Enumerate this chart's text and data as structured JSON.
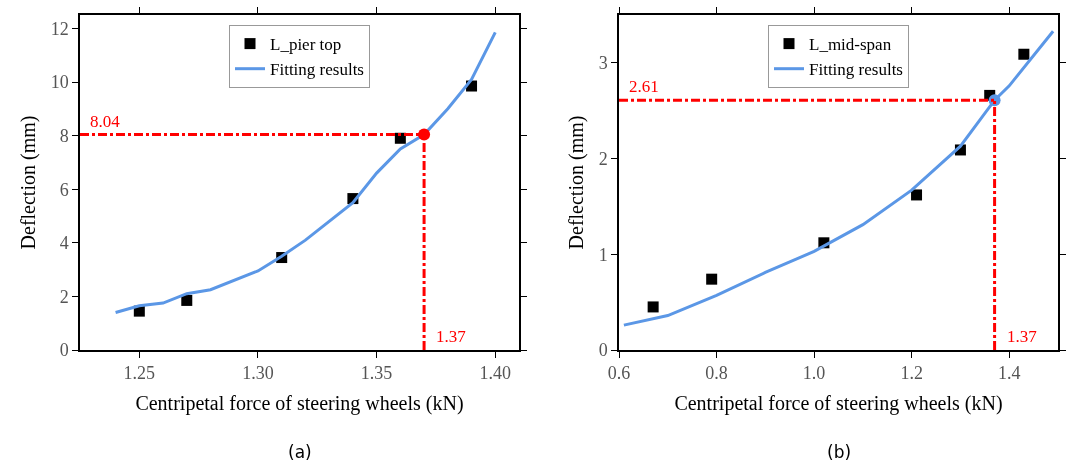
{
  "chart_data": [
    {
      "type": "scatter",
      "xlabel": "Centripetal force of steering wheels (kN)",
      "ylabel": "Deflection (mm)",
      "annotations": [
        "(a)"
      ],
      "xlim": [
        1.225,
        1.41
      ],
      "xticks": [
        {
          "value": 1.25,
          "label": "1.25"
        },
        {
          "value": 1.3,
          "label": "1.30"
        },
        {
          "value": 1.35,
          "label": "1.35"
        },
        {
          "value": 1.4,
          "label": "1.40"
        }
      ],
      "ylim": [
        0,
        12.5
      ],
      "yticks": [
        0,
        2,
        4,
        6,
        8,
        10,
        12
      ],
      "grid": false,
      "legend": "top",
      "series": [
        {
          "name": "L_pier top",
          "marker": "square",
          "color": "#000000",
          "x": [
            1.25,
            1.27,
            1.31,
            1.34,
            1.36,
            1.39
          ],
          "values": [
            1.45,
            1.85,
            3.45,
            5.65,
            7.9,
            9.85
          ]
        },
        {
          "name": "Fitting results",
          "type": "line",
          "marker": "none",
          "color": "#5b97e6",
          "x": [
            1.24,
            1.25,
            1.26,
            1.27,
            1.28,
            1.3,
            1.31,
            1.32,
            1.34,
            1.35,
            1.36,
            1.37,
            1.38,
            1.39,
            1.4
          ],
          "values": [
            1.4,
            1.65,
            1.75,
            2.1,
            2.25,
            2.95,
            3.5,
            4.1,
            5.5,
            6.6,
            7.5,
            8.04,
            9.0,
            10.1,
            11.85
          ]
        },
        {
          "marker": "circle",
          "color": "#ff0000",
          "x": [
            1.37
          ],
          "values": [
            8.04
          ]
        }
      ],
      "ref_lines": [
        {
          "axis": "y",
          "value": 8.04,
          "label": "8.04",
          "color": "#ff0000",
          "line_style": "dashdot"
        },
        {
          "axis": "x",
          "value": 1.37,
          "label": "1.37",
          "color": "#ff0000",
          "line_style": "dashdot"
        }
      ]
    },
    {
      "type": "scatter",
      "xlabel": "Centripetal force of steering wheels (kN)",
      "ylabel": "Deflection (mm)",
      "annotations": [
        "(b)"
      ],
      "xlim": [
        0.6,
        1.5
      ],
      "xticks": [
        {
          "value": 0.6,
          "label": "0.6"
        },
        {
          "value": 0.8,
          "label": "0.8"
        },
        {
          "value": 1.0,
          "label": "1.0"
        },
        {
          "value": 1.2,
          "label": "1.2"
        },
        {
          "value": 1.4,
          "label": "1.4"
        }
      ],
      "ylim": [
        0,
        3.5
      ],
      "yticks": [
        0,
        1,
        2,
        3
      ],
      "grid": false,
      "legend": "top",
      "series": [
        {
          "name": "L_mid-span",
          "marker": "square",
          "color": "#000000",
          "x": [
            0.67,
            0.79,
            1.02,
            1.21,
            1.3,
            1.36,
            1.43
          ],
          "values": [
            0.45,
            0.74,
            1.12,
            1.62,
            2.09,
            2.66,
            3.09
          ]
        },
        {
          "name": "Fitting results",
          "type": "line",
          "marker": "none",
          "color": "#5b97e6",
          "x": [
            0.61,
            0.7,
            0.8,
            0.9,
            1.0,
            1.1,
            1.2,
            1.3,
            1.37,
            1.4,
            1.49
          ],
          "values": [
            0.26,
            0.36,
            0.57,
            0.81,
            1.03,
            1.31,
            1.67,
            2.13,
            2.61,
            2.76,
            3.33
          ]
        },
        {
          "marker": "circle",
          "color": "#5b97e6",
          "x": [
            1.37
          ],
          "values": [
            2.61
          ]
        }
      ],
      "ref_lines": [
        {
          "axis": "y",
          "value": 2.61,
          "label": "2.61",
          "color": "#ff0000",
          "line_style": "dashdot"
        },
        {
          "axis": "x",
          "value": 1.37,
          "label": "1.37",
          "color": "#ff0000",
          "line_style": "dashdot"
        }
      ]
    }
  ]
}
